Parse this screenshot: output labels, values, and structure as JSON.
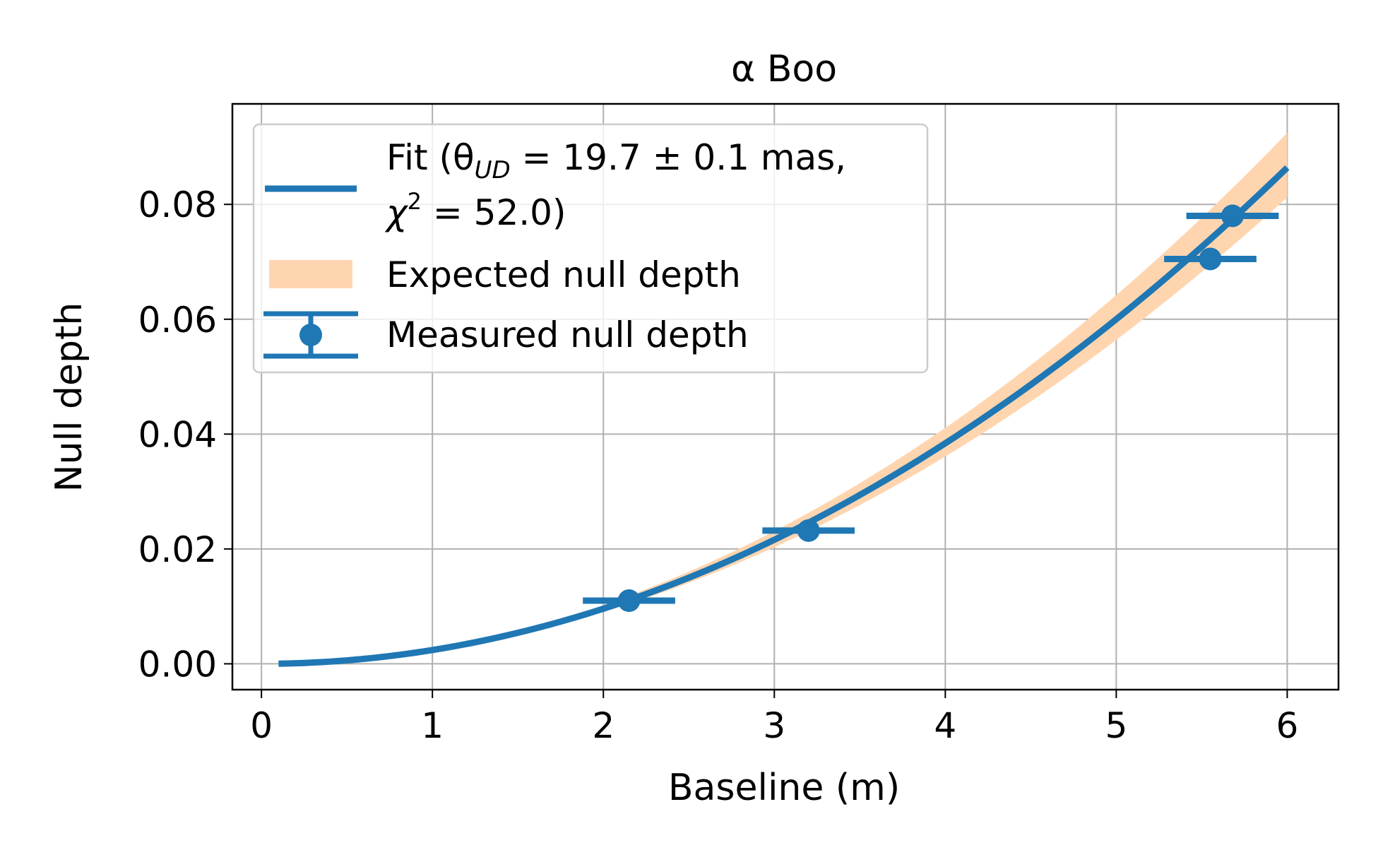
{
  "chart_data": {
    "type": "line",
    "title": "α Boo",
    "xlabel": "Baseline (m)",
    "ylabel": "Null depth",
    "xlim": [
      -0.17,
      6.3
    ],
    "ylim": [
      -0.0045,
      0.0975
    ],
    "xticks": [
      0,
      1,
      2,
      3,
      4,
      5,
      6
    ],
    "xtick_labels": [
      "0",
      "1",
      "2",
      "3",
      "4",
      "5",
      "6"
    ],
    "yticks": [
      0,
      0.02,
      0.04,
      0.06,
      0.08
    ],
    "ytick_labels": [
      "0.00",
      "0.02",
      "0.04",
      "0.06",
      "0.08"
    ],
    "grid": true,
    "legend_placement": "top-left",
    "series": [
      {
        "name": "Fit",
        "kind": "line",
        "color": "#1f77b4",
        "x_range": [
          0.1,
          6.0
        ],
        "model": "quadratic",
        "coefficient": 0.0024
      },
      {
        "name": "Expected null depth",
        "kind": "band",
        "color": "#ffd5b0",
        "x_range": [
          2.0,
          6.0
        ],
        "lower_factor": 0.94,
        "upper_factor": 1.07
      },
      {
        "name": "Measured null depth",
        "kind": "errorbar",
        "color": "#1f77b4",
        "x": [
          2.15,
          3.2,
          5.55,
          5.68
        ],
        "y": [
          0.011,
          0.0232,
          0.0705,
          0.078
        ],
        "xerr": [
          0.27,
          0.27,
          0.27,
          0.27
        ]
      }
    ],
    "legend": {
      "fit_line1": "Fit (θ",
      "fit_sub": "UD",
      "fit_line1_rest": " = 19.7 ± 0.1 mas,",
      "fit_line2_chi": "χ",
      "fit_line2_sup": "2",
      "fit_line2_rest": " = 52.0)",
      "band": "Expected null depth",
      "points": "Measured null depth"
    }
  }
}
